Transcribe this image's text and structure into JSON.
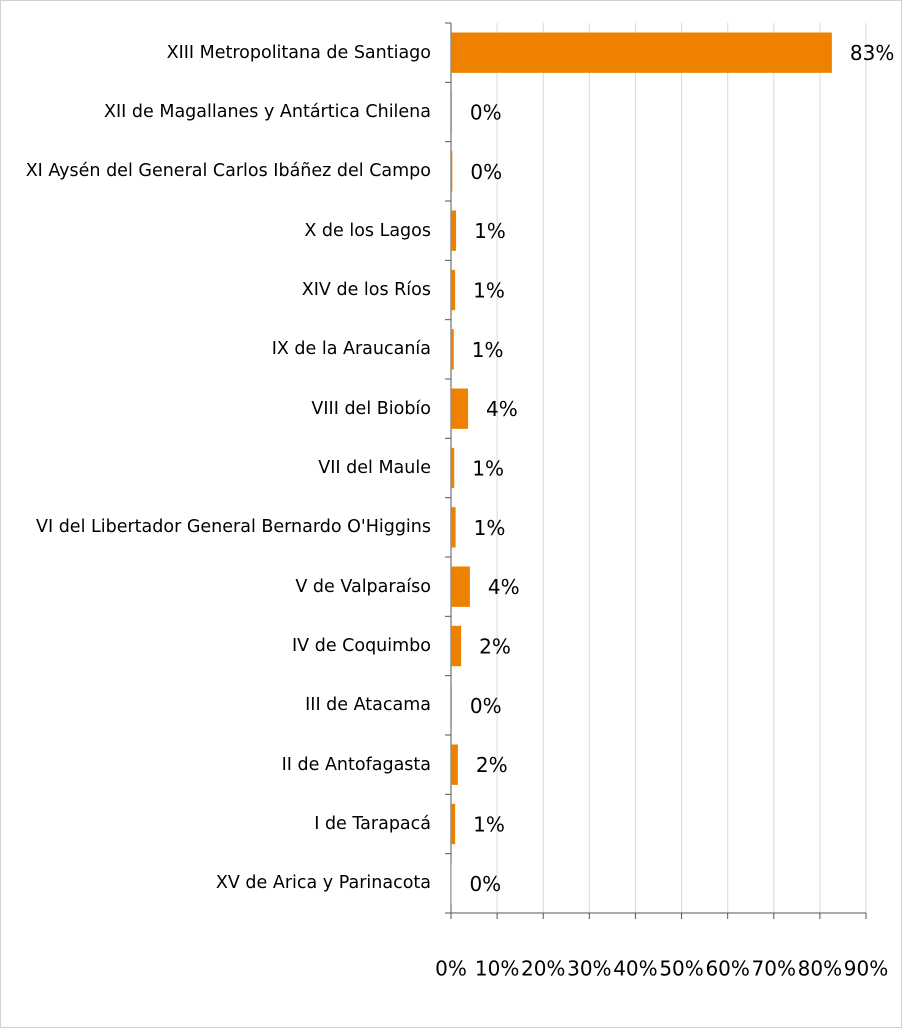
{
  "chart_data": {
    "type": "bar",
    "orientation": "horizontal",
    "categories": [
      "XIII Metropolitana de Santiago",
      "XII de Magallanes y Antártica Chilena",
      "XI Aysén del General Carlos Ibáñez del Campo",
      "X de los Lagos",
      "XIV de los Ríos",
      "IX de la Araucanía",
      "VIII del Biobío",
      "VII del Maule",
      "VI del Libertador General Bernardo O'Higgins",
      "V de Valparaíso",
      "IV de Coquimbo",
      "III de Atacama",
      "II de Antofagasta",
      "I de Tarapacá",
      "XV de Arica y Parinacota"
    ],
    "values": [
      82.6,
      0.2,
      0.3,
      1.1,
      0.9,
      0.6,
      3.7,
      0.7,
      1.0,
      4.1,
      2.2,
      0.2,
      1.5,
      0.9,
      0.1
    ],
    "value_labels": [
      "83%",
      "0%",
      "0%",
      "1%",
      "1%",
      "1%",
      "4%",
      "1%",
      "1%",
      "4%",
      "2%",
      "0%",
      "2%",
      "1%",
      "0%"
    ],
    "color": "#ee8200",
    "xlim": [
      0,
      90
    ],
    "xticks": [
      {
        "value": 0,
        "label": "0%"
      },
      {
        "value": 10,
        "label": "10%"
      },
      {
        "value": 20,
        "label": "20%"
      },
      {
        "value": 30,
        "label": "30%"
      },
      {
        "value": 40,
        "label": "40%"
      },
      {
        "value": 50,
        "label": "50%"
      },
      {
        "value": 60,
        "label": "60%"
      },
      {
        "value": 70,
        "label": "70%"
      },
      {
        "value": 80,
        "label": "80%"
      },
      {
        "value": 90,
        "label": "90%"
      }
    ],
    "grid": true
  }
}
